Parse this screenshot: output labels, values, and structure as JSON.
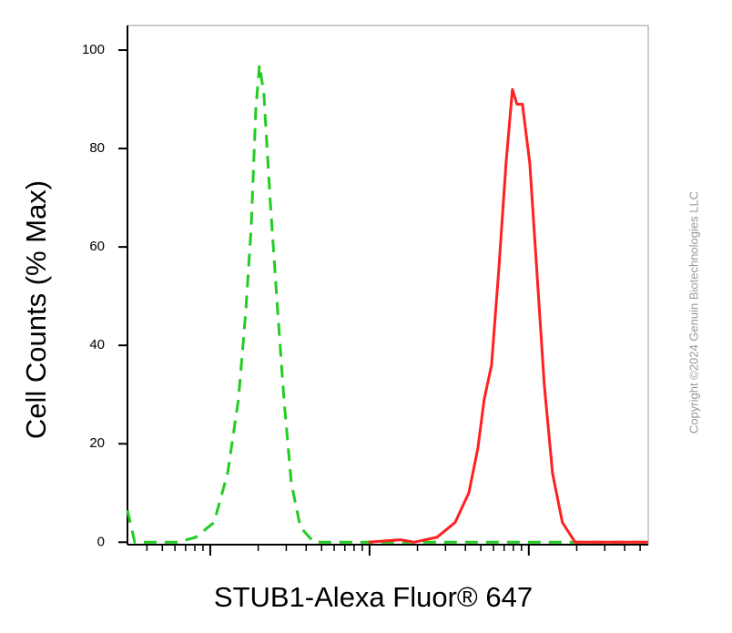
{
  "chart_data": {
    "type": "line",
    "x_label": "STUB1-Alexa Fluor® 647",
    "y_label": "Cell Counts (% Max)",
    "watermark": "Copyright ©2024 Genuin Biotechnologies LLC",
    "series": [
      {
        "color": "#22cc22",
        "dash": true,
        "x": [
          1.48,
          1.526,
          1.794,
          1.909,
          2.023,
          2.109,
          2.177,
          2.223,
          2.257,
          2.286,
          2.309,
          2.337,
          2.377,
          2.423,
          2.463,
          2.509,
          2.566,
          2.651,
          4.749
        ],
        "values": [
          6.5,
          0,
          0,
          1,
          4,
          14,
          29,
          47,
          64,
          88,
          97,
          91,
          69,
          47,
          29,
          12,
          3,
          0,
          0
        ]
      },
      {
        "color": "#ff2020",
        "dash": false,
        "x": [
          2.994,
          3.194,
          3.28,
          3.423,
          3.537,
          3.623,
          3.68,
          3.72,
          3.766,
          3.811,
          3.857,
          3.897,
          3.926,
          3.96,
          4.006,
          4.051,
          4.097,
          4.149,
          4.211,
          4.291,
          4.749
        ],
        "values": [
          0,
          0.5,
          0,
          1,
          4,
          10,
          19,
          29,
          36,
          55,
          77,
          92,
          89,
          89,
          77,
          55,
          32,
          14,
          4,
          0,
          0
        ]
      }
    ],
    "xlim": [
      1.48,
      4.75
    ],
    "xticks": [
      2,
      3,
      4
    ],
    "ylim": [
      -0.5,
      105
    ],
    "yticks": [
      0,
      20,
      40,
      60,
      80,
      100
    ]
  }
}
